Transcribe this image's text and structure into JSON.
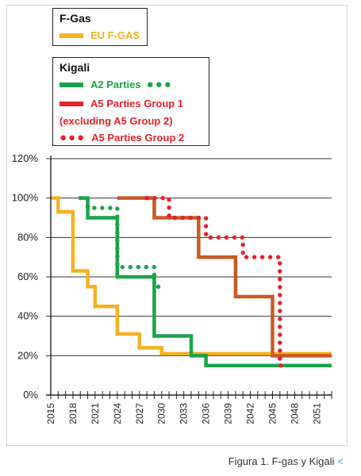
{
  "legend_fgas": {
    "title": "F-Gas",
    "eu_label": "EU F-GAS"
  },
  "legend_kigali": {
    "title": "Kigali",
    "a2_label": "A2 Parties",
    "a5g1_label": "A5 Parties Group 1",
    "a5g1_sub": "(excluding A5 Group 2)",
    "a5g2_label": "A5 Parties Group 2"
  },
  "colors": {
    "eu": "#f5b120",
    "a2": "#1aa34a",
    "a5g1": "#c85a22",
    "a5g2": "#e8212b",
    "legend_a5g1": "#e8212b"
  },
  "caption": {
    "text": "Figura 1. F-gas y Kigali",
    "arrow": "<"
  },
  "chart_data": {
    "type": "line",
    "title": "",
    "xlabel": "",
    "ylabel": "",
    "x_range": [
      2015,
      2053
    ],
    "x_ticks": [
      2015,
      2018,
      2021,
      2024,
      2027,
      2030,
      2033,
      2036,
      2039,
      2042,
      2045,
      2048,
      2051
    ],
    "y_range": [
      0,
      120
    ],
    "y_ticks": [
      0,
      20,
      40,
      60,
      80,
      100,
      120
    ],
    "y_tick_labels": [
      "0%",
      "20%",
      "40%",
      "60%",
      "80%",
      "100%",
      "120%"
    ],
    "grid": "horizontal",
    "series": [
      {
        "name": "EU F-GAS",
        "style": "solid",
        "color": "#f5b120",
        "x": [
          2015,
          2016,
          2016,
          2018,
          2018,
          2020,
          2020,
          2021,
          2021,
          2024,
          2024,
          2027,
          2027,
          2030,
          2030,
          2053
        ],
        "y": [
          100,
          100,
          93,
          93,
          63,
          63,
          55,
          55,
          45,
          45,
          31,
          31,
          24,
          24,
          21,
          21
        ]
      },
      {
        "name": "A2 Parties",
        "style": "dotted",
        "color": "#1aa34a",
        "x": [
          2019,
          2020,
          2020,
          2024,
          2024,
          2029,
          2029,
          2030
        ],
        "y": [
          100,
          100,
          95,
          95,
          65,
          65,
          55,
          55
        ]
      },
      {
        "name": "A2 Parties",
        "style": "solid",
        "color": "#1aa34a",
        "x": [
          2019,
          2020,
          2020,
          2024,
          2024,
          2029,
          2029,
          2034,
          2034,
          2036,
          2036,
          2053
        ],
        "y": [
          100,
          100,
          90,
          90,
          60,
          60,
          30,
          30,
          20,
          20,
          15,
          15
        ]
      },
      {
        "name": "A5 Parties Group 1",
        "style": "solid",
        "color": "#c85a22",
        "x": [
          2024,
          2029,
          2029,
          2035,
          2035,
          2040,
          2040,
          2045,
          2045,
          2053
        ],
        "y": [
          100,
          100,
          90,
          90,
          70,
          70,
          50,
          50,
          20,
          20
        ]
      },
      {
        "name": "A5 Parties Group 2",
        "style": "dotted",
        "color": "#e8212b",
        "x": [
          2028,
          2031,
          2031,
          2036,
          2036,
          2041,
          2041,
          2046,
          2046,
          2047
        ],
        "y": [
          100,
          100,
          90,
          90,
          80,
          80,
          70,
          70,
          15,
          15
        ]
      }
    ]
  }
}
